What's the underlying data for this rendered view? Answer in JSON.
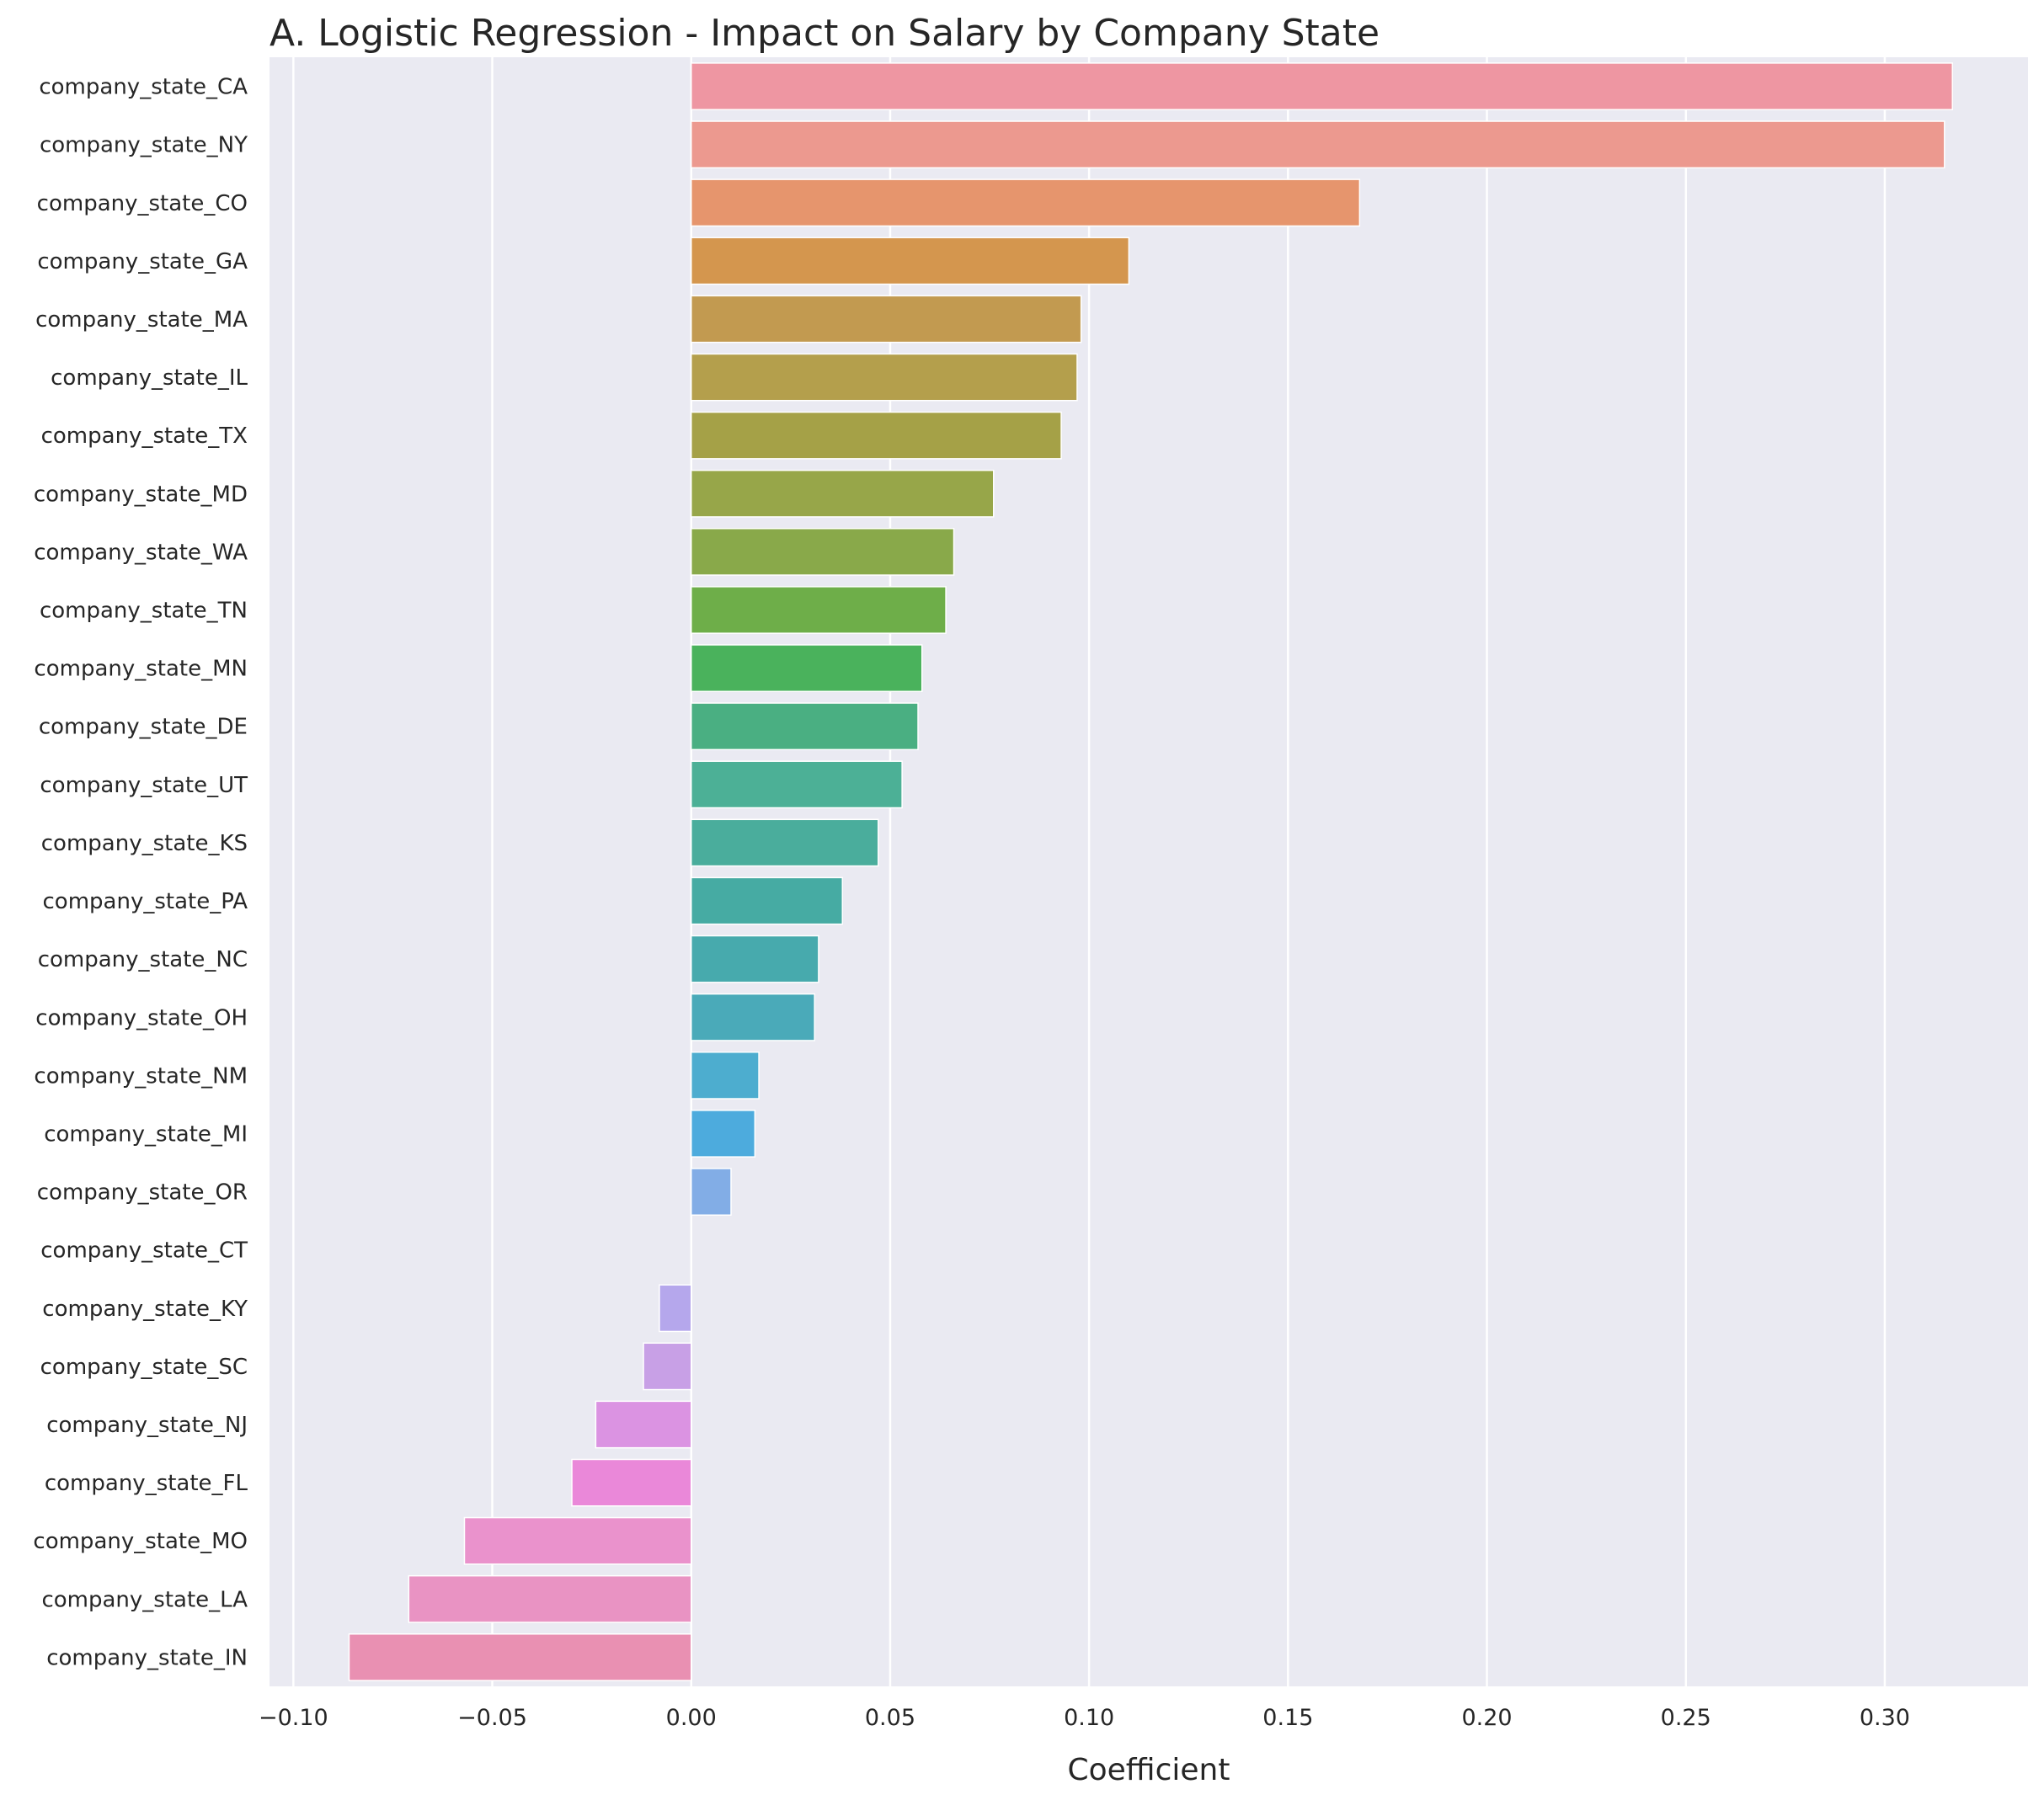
{
  "chart_data": {
    "type": "bar",
    "orientation": "horizontal",
    "title": "A. Logistic Regression - Impact on Salary by Company State",
    "xlabel": "Coefficient",
    "ylabel": "",
    "xlim": [
      -0.106,
      0.336
    ],
    "xticks": [
      -0.1,
      -0.05,
      0.0,
      0.05,
      0.1,
      0.15,
      0.2,
      0.25,
      0.3
    ],
    "xtick_labels": [
      "−0.10",
      "−0.05",
      "0.00",
      "0.05",
      "0.10",
      "0.15",
      "0.20",
      "0.25",
      "0.30"
    ],
    "grid": true,
    "background": "#eaeaf2",
    "categories": [
      "company_state_CA",
      "company_state_NY",
      "company_state_CO",
      "company_state_GA",
      "company_state_MA",
      "company_state_IL",
      "company_state_TX",
      "company_state_MD",
      "company_state_WA",
      "company_state_TN",
      "company_state_MN",
      "company_state_DE",
      "company_state_UT",
      "company_state_KS",
      "company_state_PA",
      "company_state_NC",
      "company_state_OH",
      "company_state_NM",
      "company_state_MI",
      "company_state_OR",
      "company_state_CT",
      "company_state_KY",
      "company_state_SC",
      "company_state_NJ",
      "company_state_FL",
      "company_state_MO",
      "company_state_LA",
      "company_state_IN"
    ],
    "values": [
      0.317,
      0.315,
      0.168,
      0.11,
      0.098,
      0.097,
      0.093,
      0.076,
      0.066,
      0.064,
      0.058,
      0.057,
      0.053,
      0.047,
      0.038,
      0.032,
      0.031,
      0.017,
      0.016,
      0.01,
      0.0,
      -0.008,
      -0.012,
      -0.024,
      -0.03,
      -0.057,
      -0.071,
      -0.086
    ],
    "colors": [
      "#ee96a2",
      "#ec998f",
      "#e6956d",
      "#d4964e",
      "#c29a50",
      "#b49f4c",
      "#a5a147",
      "#97a649",
      "#89a94a",
      "#6eae49",
      "#4ab25c",
      "#4aaf82",
      "#4cb096",
      "#4aad9c",
      "#46aba3",
      "#47aaad",
      "#4aaab9",
      "#4dadcf",
      "#4dabdd",
      "#82ade6",
      "#c0b5e9",
      "#b5a7ec",
      "#c8a0e6",
      "#db93e2",
      "#ea88d9",
      "#ea92cc",
      "#e993c3",
      "#e990b2"
    ]
  }
}
